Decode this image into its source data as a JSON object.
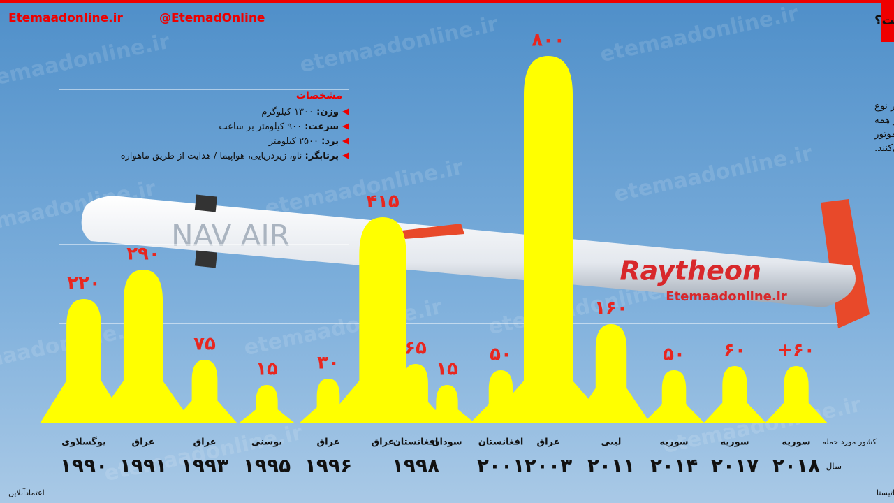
{
  "header": {
    "site": "Etemaadonline.ir",
    "twitter": "@EtemadOnline",
    "title": "آمریکا با موشک‌های تاماهاک به کدام کشورها حمله کرده است؟"
  },
  "watermark": "etemaadonline.ir",
  "specs": {
    "heading": "مشخصات",
    "items": [
      {
        "label": "وزن:",
        "value": "۱۳۰۰ کیلوگرم"
      },
      {
        "label": "سرعت:",
        "value": "۹۰۰ کیلومتر بر ساعت"
      },
      {
        "label": "برد:",
        "value": "۲۵۰۰ کیلومتر"
      },
      {
        "label": "پرتابگر:",
        "value": "ناو، زیردریایی، هواپیما / هدایت از طریق ماهواره"
      }
    ]
  },
  "description": [
    "تاماهاک، موشک جنگی دور برد مادون سرعت صوت از نوع",
    "موشک کروز است که قابلیت پرتاب و استفاده در همه",
    "شرایط آب و هوایی و جوی را دارد. موشک‌های کروز از موتور",
    "جت و راهبری ماهواره‌ای استفاده می‌کنند."
  ],
  "image_labels": {
    "maker": "Raytheon",
    "site": "Etemaadonline.ir",
    "navy": "NAV AIR"
  },
  "chart_data": {
    "type": "bar",
    "color": "#ffff00",
    "categories": [
      "یوگسلاوی",
      "عراق",
      "عراق",
      "بوسنی",
      "عراق",
      "عراق",
      "افغانستان",
      "سودان",
      "افغانستان",
      "عراق",
      "لیبی",
      "سوریه",
      "سوریه",
      "سوریه"
    ],
    "years": [
      "۱۹۹۰",
      "۱۹۹۱",
      "۱۹۹۳",
      "۱۹۹۵",
      "۱۹۹۶",
      null,
      "۱۹۹۸",
      null,
      "۲۰۰۱",
      "۲۰۰۳",
      "۲۰۱۱",
      "۲۰۱۴",
      "۲۰۱۷",
      "۲۰۱۸"
    ],
    "values": [
      220,
      290,
      75,
      15,
      30,
      415,
      65,
      15,
      50,
      800,
      160,
      50,
      60,
      60
    ],
    "value_labels": [
      "۲۲۰",
      "۲۹۰",
      "۷۵",
      "۱۵",
      "۳۰",
      "۴۱۵",
      "۶۵",
      "۱۵",
      "۵۰",
      "۸۰۰",
      "۱۶۰",
      "۵۰",
      "۶۰",
      "+۶۰"
    ],
    "category_axis_label": "کشور مورد حمله",
    "year_axis_label": "سال"
  },
  "footer": {
    "sources": "منابع داده: ویکی‌پدیا، گزارشات رسانه‌ای، استاتیستا",
    "brand": "اعتمادآنلاین"
  }
}
